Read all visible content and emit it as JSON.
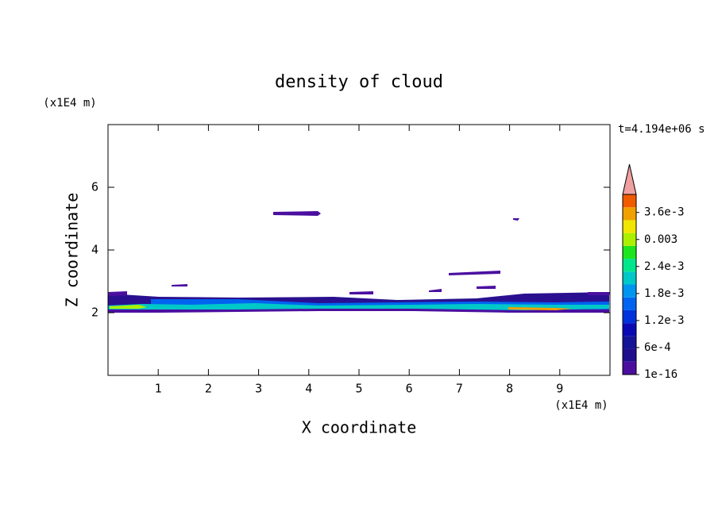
{
  "chart_data": {
    "type": "contour",
    "title": "density of cloud",
    "x_label": "X coordinate",
    "y_label": "Z coordinate",
    "x_unit": "(x1E4 m)",
    "y_unit": "(x1E4 m)",
    "time_label": "t=4.194e+06 s",
    "xlim": [
      0,
      10
    ],
    "ylim": [
      0,
      8
    ],
    "xticks": [
      1,
      2,
      3,
      4,
      5,
      6,
      7,
      8,
      9
    ],
    "yticks": [
      2,
      4,
      6
    ],
    "colorbar": {
      "lim": [
        1e-16,
        0.004
      ],
      "colors": [
        "#4b0fa0",
        "#1f0f8c",
        "#141496",
        "#0a0ab4",
        "#0032dc",
        "#0064f0",
        "#0096f0",
        "#00c8c8",
        "#00e68c",
        "#1ee61e",
        "#aaf000",
        "#f0e600",
        "#f0a000",
        "#f05a00"
      ],
      "extend_color": "#f0a0a0",
      "ticks": [
        {
          "value": 1e-16,
          "label": "1e-16"
        },
        {
          "value": 0.0006,
          "label": "6e-4"
        },
        {
          "value": 0.0012,
          "label": "1.2e-3"
        },
        {
          "value": 0.0018,
          "label": "1.8e-3"
        },
        {
          "value": 0.0024,
          "label": "2.4e-3"
        },
        0.003,
        {
          "value": 0.0036,
          "label": "3.6e-3"
        }
      ]
    }
  }
}
